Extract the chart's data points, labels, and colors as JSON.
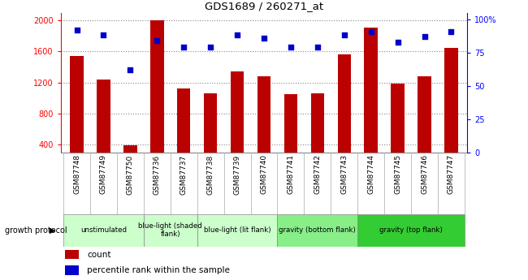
{
  "title": "GDS1689 / 260271_at",
  "samples": [
    "GSM87748",
    "GSM87749",
    "GSM87750",
    "GSM87736",
    "GSM87737",
    "GSM87738",
    "GSM87739",
    "GSM87740",
    "GSM87741",
    "GSM87742",
    "GSM87743",
    "GSM87744",
    "GSM87745",
    "GSM87746",
    "GSM87747"
  ],
  "counts": [
    1540,
    1240,
    390,
    2000,
    1120,
    1060,
    1340,
    1280,
    1050,
    1060,
    1560,
    1910,
    1190,
    1280,
    1650
  ],
  "percentiles": [
    92,
    88,
    62,
    84,
    79,
    79,
    88,
    86,
    79,
    79,
    88,
    91,
    83,
    87,
    91
  ],
  "groups": [
    {
      "label": "unstimulated",
      "start": 0,
      "end": 3,
      "color": "#ccffcc"
    },
    {
      "label": "blue-light (shaded\nflank)",
      "start": 3,
      "end": 5,
      "color": "#ccffcc"
    },
    {
      "label": "blue-light (lit flank)",
      "start": 5,
      "end": 8,
      "color": "#ccffcc"
    },
    {
      "label": "gravity (bottom flank)",
      "start": 8,
      "end": 11,
      "color": "#88ee88"
    },
    {
      "label": "gravity (top flank)",
      "start": 11,
      "end": 15,
      "color": "#33cc33"
    }
  ],
  "ylim_left": [
    300,
    2100
  ],
  "ylim_right": [
    0,
    105
  ],
  "yticks_left": [
    400,
    800,
    1200,
    1600,
    2000
  ],
  "yticks_right": [
    0,
    25,
    50,
    75,
    100
  ],
  "bar_color": "#bb0000",
  "dot_color": "#0000cc",
  "grid_color": "#888888",
  "sample_bg_color": "#d8d8d8",
  "bar_width": 0.5,
  "growth_protocol_label": "growth protocol"
}
